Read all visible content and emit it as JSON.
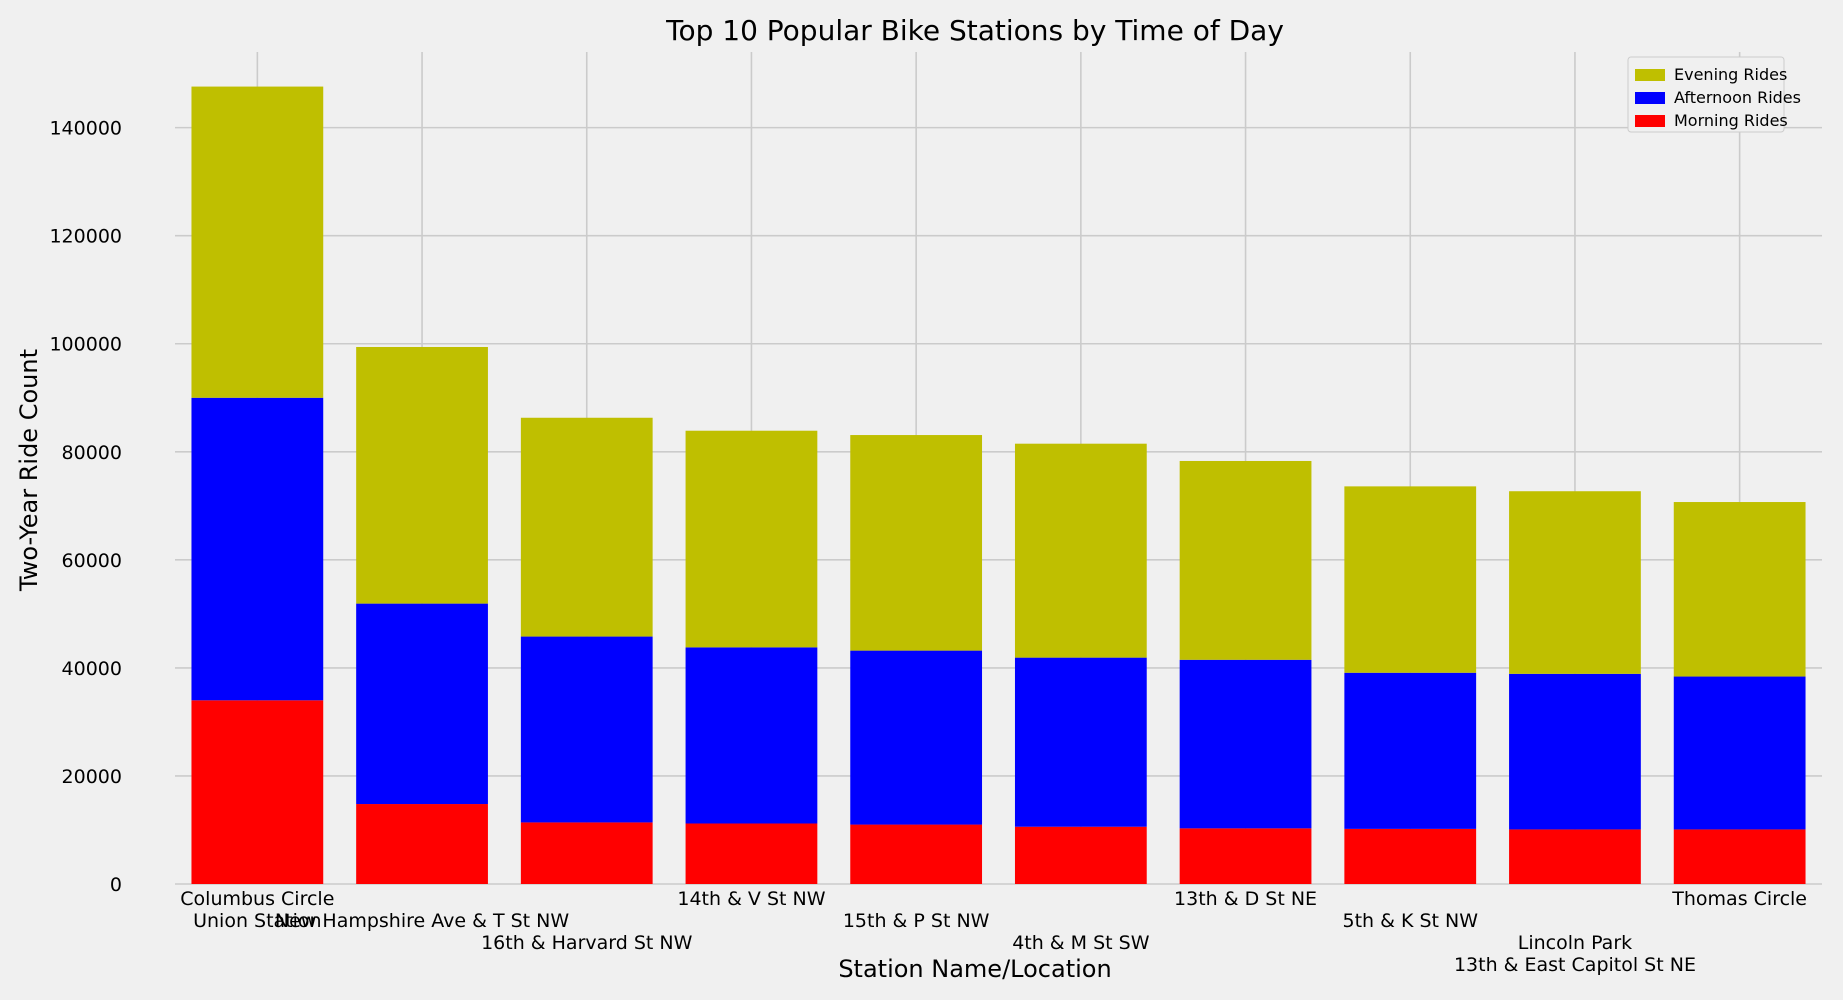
{
  "chart_data": {
    "type": "bar",
    "stacked": true,
    "title": "Top 10 Popular Bike Stations by Time of Day",
    "xlabel": "Station Name/Location",
    "ylabel": "Two-Year Ride Count",
    "categories": [
      "Columbus Circle\nUnion Station",
      "New Hampshire Ave & T St NW",
      "16th & Harvard St NW",
      "14th & V St NW",
      "15th & P St NW",
      "4th & M St SW",
      "13th & D St NE",
      "5th & K St NW",
      "Lincoln Park\n13th & East Capitol St NE",
      "Thomas Circle"
    ],
    "series": [
      {
        "name": "Morning Rides",
        "color": "#ff0000",
        "values": [
          34000,
          14800,
          11400,
          11200,
          11000,
          10600,
          10300,
          10200,
          10100,
          10100
        ]
      },
      {
        "name": "Afternoon Rides",
        "color": "#0000ff",
        "values": [
          56000,
          37100,
          34400,
          32600,
          32200,
          31300,
          31200,
          28900,
          28800,
          28300
        ]
      },
      {
        "name": "Evening Rides",
        "color": "#bfbf00",
        "values": [
          57600,
          47500,
          40500,
          40100,
          39900,
          39600,
          36800,
          34500,
          33800,
          32300
        ]
      }
    ],
    "yticks": [
      "0",
      "20000",
      "40000",
      "60000",
      "80000",
      "100000",
      "120000",
      "140000"
    ],
    "ylim": [
      0,
      154000
    ],
    "grid": true,
    "legend": {
      "position": "top-right",
      "order": [
        "Evening Rides",
        "Afternoon Rides",
        "Morning Rides"
      ]
    }
  }
}
